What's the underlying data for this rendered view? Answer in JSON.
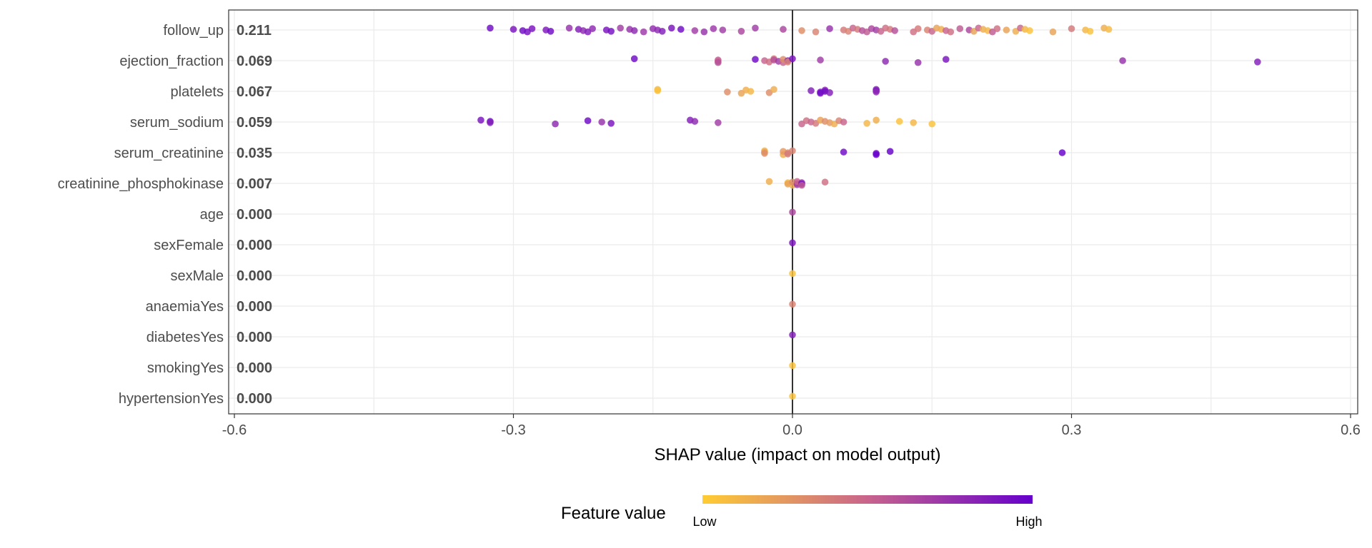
{
  "chart_data": {
    "type": "scatter",
    "subtype": "shap-summary-beeswarm",
    "xlabel": "SHAP value (impact on model output)",
    "xlim": [
      -0.6,
      0.6
    ],
    "xticks": [
      -0.6,
      -0.3,
      0.0,
      0.3,
      0.6
    ],
    "xtick_labels": [
      "-0.6",
      "-0.3",
      "0.0",
      "0.3",
      "0.6"
    ],
    "grid": true,
    "zero_line": true,
    "legend": {
      "title": "Feature value",
      "low_label": "Low",
      "high_label": "High",
      "placement": "bottom",
      "low_color": "#FFCC33",
      "mid_color": "#C8648C",
      "high_color": "#6600CC"
    },
    "features": [
      {
        "name": "follow_up",
        "mean_abs": "0.211",
        "points": [
          [
            -0.325,
            0.95
          ],
          [
            -0.3,
            0.9
          ],
          [
            -0.29,
            0.95
          ],
          [
            -0.285,
            0.92
          ],
          [
            -0.28,
            0.9
          ],
          [
            -0.265,
            0.88
          ],
          [
            -0.26,
            0.95
          ],
          [
            -0.24,
            0.75
          ],
          [
            -0.23,
            0.85
          ],
          [
            -0.225,
            0.8
          ],
          [
            -0.22,
            0.85
          ],
          [
            -0.215,
            0.8
          ],
          [
            -0.2,
            0.9
          ],
          [
            -0.195,
            0.92
          ],
          [
            -0.185,
            0.7
          ],
          [
            -0.175,
            0.75
          ],
          [
            -0.17,
            0.8
          ],
          [
            -0.16,
            0.72
          ],
          [
            -0.15,
            0.78
          ],
          [
            -0.145,
            0.8
          ],
          [
            -0.14,
            0.85
          ],
          [
            -0.13,
            0.9
          ],
          [
            -0.12,
            0.95
          ],
          [
            -0.105,
            0.7
          ],
          [
            -0.095,
            0.75
          ],
          [
            -0.085,
            0.72
          ],
          [
            -0.075,
            0.7
          ],
          [
            -0.055,
            0.65
          ],
          [
            -0.04,
            0.7
          ],
          [
            -0.01,
            0.65
          ],
          [
            0.01,
            0.3
          ],
          [
            0.025,
            0.35
          ],
          [
            0.04,
            0.75
          ],
          [
            0.055,
            0.4
          ],
          [
            0.06,
            0.35
          ],
          [
            0.065,
            0.5
          ],
          [
            0.07,
            0.4
          ],
          [
            0.075,
            0.6
          ],
          [
            0.08,
            0.55
          ],
          [
            0.085,
            0.65
          ],
          [
            0.09,
            0.7
          ],
          [
            0.095,
            0.5
          ],
          [
            0.1,
            0.45
          ],
          [
            0.105,
            0.4
          ],
          [
            0.11,
            0.6
          ],
          [
            0.13,
            0.45
          ],
          [
            0.135,
            0.4
          ],
          [
            0.145,
            0.35
          ],
          [
            0.15,
            0.5
          ],
          [
            0.155,
            0.2
          ],
          [
            0.16,
            0.15
          ],
          [
            0.165,
            0.5
          ],
          [
            0.17,
            0.45
          ],
          [
            0.18,
            0.55
          ],
          [
            0.19,
            0.65
          ],
          [
            0.195,
            0.2
          ],
          [
            0.2,
            0.5
          ],
          [
            0.205,
            0.15
          ],
          [
            0.21,
            0.1
          ],
          [
            0.215,
            0.55
          ],
          [
            0.22,
            0.45
          ],
          [
            0.23,
            0.2
          ],
          [
            0.24,
            0.15
          ],
          [
            0.245,
            0.5
          ],
          [
            0.25,
            0.1
          ],
          [
            0.255,
            0.05
          ],
          [
            0.28,
            0.2
          ],
          [
            0.3,
            0.4
          ],
          [
            0.315,
            0.1
          ],
          [
            0.32,
            0.05
          ],
          [
            0.335,
            0.15
          ],
          [
            0.34,
            0.08
          ]
        ]
      },
      {
        "name": "ejection_fraction",
        "mean_abs": "0.069",
        "points": [
          [
            -0.17,
            0.95
          ],
          [
            -0.08,
            0.55
          ],
          [
            -0.08,
            0.5
          ],
          [
            -0.08,
            0.6
          ],
          [
            -0.04,
            0.95
          ],
          [
            -0.03,
            0.5
          ],
          [
            -0.025,
            0.45
          ],
          [
            -0.02,
            0.4
          ],
          [
            -0.02,
            0.6
          ],
          [
            -0.015,
            0.7
          ],
          [
            -0.01,
            0.5
          ],
          [
            -0.01,
            0.3
          ],
          [
            -0.005,
            0.85
          ],
          [
            -0.005,
            0.35
          ],
          [
            0.0,
            0.9
          ],
          [
            0.03,
            0.7
          ],
          [
            0.1,
            0.8
          ],
          [
            0.135,
            0.75
          ],
          [
            0.165,
            0.9
          ],
          [
            0.355,
            0.75
          ],
          [
            0.5,
            0.85
          ]
        ]
      },
      {
        "name": "platelets",
        "mean_abs": "0.067",
        "points": [
          [
            -0.145,
            0.1
          ],
          [
            -0.145,
            0.05
          ],
          [
            -0.07,
            0.3
          ],
          [
            -0.055,
            0.2
          ],
          [
            -0.05,
            0.15
          ],
          [
            -0.045,
            0.1
          ],
          [
            -0.025,
            0.3
          ],
          [
            -0.02,
            0.15
          ],
          [
            0.02,
            0.85
          ],
          [
            0.03,
            0.9
          ],
          [
            0.03,
            0.95
          ],
          [
            0.035,
            0.8
          ],
          [
            0.035,
            0.95
          ],
          [
            0.04,
            0.85
          ],
          [
            0.09,
            0.85
          ],
          [
            0.09,
            0.9
          ],
          [
            0.09,
            0.8
          ]
        ]
      },
      {
        "name": "serum_sodium",
        "mean_abs": "0.059",
        "points": [
          [
            -0.335,
            0.9
          ],
          [
            -0.325,
            0.95
          ],
          [
            -0.325,
            0.85
          ],
          [
            -0.255,
            0.8
          ],
          [
            -0.22,
            0.95
          ],
          [
            -0.205,
            0.75
          ],
          [
            -0.195,
            0.9
          ],
          [
            -0.11,
            0.85
          ],
          [
            -0.105,
            0.8
          ],
          [
            -0.08,
            0.7
          ],
          [
            0.01,
            0.5
          ],
          [
            0.015,
            0.45
          ],
          [
            0.02,
            0.5
          ],
          [
            0.025,
            0.4
          ],
          [
            0.03,
            0.2
          ],
          [
            0.035,
            0.3
          ],
          [
            0.04,
            0.25
          ],
          [
            0.045,
            0.15
          ],
          [
            0.05,
            0.35
          ],
          [
            0.055,
            0.5
          ],
          [
            0.08,
            0.1
          ],
          [
            0.09,
            0.15
          ],
          [
            0.115,
            0.05
          ],
          [
            0.13,
            0.1
          ],
          [
            0.15,
            0.05
          ]
        ]
      },
      {
        "name": "serum_creatinine",
        "mean_abs": "0.035",
        "points": [
          [
            -0.03,
            0.1
          ],
          [
            -0.03,
            0.2
          ],
          [
            -0.03,
            0.3
          ],
          [
            -0.01,
            0.15
          ],
          [
            -0.01,
            0.25
          ],
          [
            -0.005,
            0.3
          ],
          [
            -0.005,
            0.4
          ],
          [
            0.0,
            0.35
          ],
          [
            0.055,
            0.95
          ],
          [
            0.09,
            0.95
          ],
          [
            0.09,
            1.0
          ],
          [
            0.105,
            1.0
          ],
          [
            0.29,
            1.0
          ]
        ]
      },
      {
        "name": "creatinine_phosphokinase",
        "mean_abs": "0.007",
        "points": [
          [
            -0.025,
            0.15
          ],
          [
            -0.005,
            0.1
          ],
          [
            -0.005,
            0.2
          ],
          [
            0.0,
            0.15
          ],
          [
            0.0,
            0.3
          ],
          [
            0.005,
            0.6
          ],
          [
            0.005,
            0.7
          ],
          [
            0.005,
            0.5
          ],
          [
            0.01,
            0.8
          ],
          [
            0.01,
            0.9
          ],
          [
            0.01,
            0.55
          ],
          [
            0.035,
            0.45
          ]
        ]
      },
      {
        "name": "age",
        "mean_abs": "0.000",
        "points": [
          [
            0.0,
            0.65
          ]
        ]
      },
      {
        "name": "sexFemale",
        "mean_abs": "0.000",
        "points": [
          [
            0.0,
            0.9
          ]
        ]
      },
      {
        "name": "sexMale",
        "mean_abs": "0.000",
        "points": [
          [
            0.0,
            0.05
          ]
        ]
      },
      {
        "name": "anaemiaYes",
        "mean_abs": "0.000",
        "points": [
          [
            0.0,
            0.35
          ]
        ]
      },
      {
        "name": "diabetesYes",
        "mean_abs": "0.000",
        "points": [
          [
            0.0,
            0.85
          ]
        ]
      },
      {
        "name": "smokingYes",
        "mean_abs": "0.000",
        "points": [
          [
            0.0,
            0.05
          ]
        ]
      },
      {
        "name": "hypertensionYes",
        "mean_abs": "0.000",
        "points": [
          [
            0.0,
            0.05
          ]
        ]
      }
    ]
  }
}
